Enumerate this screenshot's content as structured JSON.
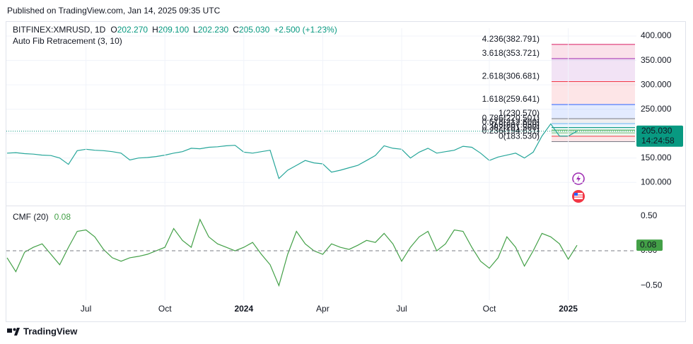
{
  "header": {
    "published": "Published on TradingView.com, Jan 14, 2025 09:35 UTC",
    "brand": "TradingView"
  },
  "chart_data": [
    {
      "type": "line",
      "title": "BITFINEX:XMRUSD, 1D",
      "ohlc": {
        "labels": [
          "O",
          "H",
          "L",
          "C"
        ],
        "values": [
          202.27,
          209.1,
          202.23,
          205.03
        ],
        "value_labels": [
          "202.270",
          "209.100",
          "202.230",
          "205.030"
        ]
      },
      "change": "+2.500 (+1.23%)",
      "indicator": "Auto Fib Retracement (3, 10)",
      "color": "#26a69a",
      "values": [
        160,
        161,
        159,
        158,
        156,
        155,
        150,
        137,
        165,
        168,
        166,
        165,
        163,
        160,
        146,
        150,
        151,
        153,
        156,
        160,
        163,
        170,
        169,
        172,
        173,
        175,
        176,
        162,
        160,
        163,
        166,
        108,
        125,
        135,
        145,
        140,
        138,
        121,
        125,
        130,
        135,
        145,
        155,
        175,
        170,
        168,
        150,
        162,
        170,
        160,
        163,
        166,
        174,
        172,
        160,
        145,
        152,
        156,
        160,
        150,
        162,
        195,
        220,
        195,
        195,
        205.03
      ],
      "ylim": [
        54,
        416
      ],
      "yticks": [
        {
          "value": 100,
          "label": "100.000"
        },
        {
          "value": 150,
          "label": "150.000"
        },
        {
          "value": 200,
          "label": "200.000"
        },
        {
          "value": 250,
          "label": "250.000"
        },
        {
          "value": 300,
          "label": "300.000"
        },
        {
          "value": 350,
          "label": "350.000"
        },
        {
          "value": 400,
          "label": "400.000"
        }
      ],
      "grid": true,
      "last_price": {
        "value": 205.03,
        "label": "205.030"
      },
      "countdown": "14:24:58",
      "fib_levels": [
        {
          "value": 382.791,
          "label": "4.236(382.791)",
          "color": "#d81b60"
        },
        {
          "value": 353.721,
          "label": "3.618(353.721)",
          "color": "#9c27b0"
        },
        {
          "value": 306.681,
          "label": "2.618(306.681)",
          "color": "#f23645"
        },
        {
          "value": 259.641,
          "label": "1.618(259.641)",
          "color": "#2962ff"
        },
        {
          "value": 230.57,
          "label": "1(230.570)",
          "color": "#787b86"
        },
        {
          "value": 220.501,
          "label": "0.786(220.501)",
          "color": "#64b5f6"
        },
        {
          "value": 212.6,
          "label": "0.618(212.600)",
          "color": "#089981"
        },
        {
          "value": 207.05,
          "label": "0.5(207.050)",
          "color": "#4caf50"
        },
        {
          "value": 201.5,
          "label": "0.382(201.500)",
          "color": "#81c784"
        },
        {
          "value": 194.631,
          "label": "0.236(194.631)",
          "color": "#f23645"
        },
        {
          "value": 183.53,
          "label": "0(183.530)",
          "color": "#787b86"
        }
      ]
    },
    {
      "type": "line",
      "title": "CMF (20)",
      "color": "#43a047",
      "categories": [
        null,
        null,
        null,
        null,
        null,
        null,
        null,
        null,
        null,
        "Jul",
        null,
        null,
        null,
        null,
        null,
        null,
        null,
        null,
        "Oct",
        null,
        null,
        null,
        null,
        null,
        null,
        null,
        null,
        "2024",
        null,
        null,
        null,
        null,
        null,
        null,
        null,
        null,
        "Apr",
        null,
        null,
        null,
        null,
        null,
        null,
        null,
        null,
        "Jul",
        null,
        null,
        null,
        null,
        null,
        null,
        null,
        null,
        null,
        "Oct",
        null,
        null,
        null,
        null,
        null,
        null,
        null,
        null,
        "2025",
        null
      ],
      "values": [
        -0.1,
        -0.3,
        -0.02,
        0.05,
        0.1,
        -0.05,
        -0.2,
        0.05,
        0.28,
        0.3,
        0.2,
        0.02,
        -0.1,
        -0.15,
        -0.1,
        -0.08,
        -0.05,
        0,
        0.05,
        0.32,
        0.15,
        0.05,
        0.45,
        0.2,
        0.1,
        0.05,
        0,
        0.05,
        0.12,
        -0.05,
        -0.2,
        -0.5,
        -0.05,
        0.28,
        0.1,
        0,
        -0.05,
        0.1,
        0.05,
        0.02,
        0.08,
        0.15,
        0.12,
        0.25,
        0.1,
        -0.15,
        0.05,
        0.2,
        0.28,
        0,
        0.1,
        0.3,
        0.28,
        0.05,
        -0.15,
        -0.25,
        -0.1,
        0.2,
        0.05,
        -0.22,
        0,
        0.25,
        0.2,
        0.1,
        -0.12,
        0.08
      ],
      "ylim": [
        -0.71,
        0.64
      ],
      "yticks": [
        {
          "value": -0.5,
          "label": "−0.50"
        },
        {
          "value": 0,
          "label": "0.00"
        },
        {
          "value": 0.5,
          "label": "0.50"
        }
      ],
      "last_value": {
        "value": 0.08,
        "label": "0.08"
      }
    }
  ]
}
